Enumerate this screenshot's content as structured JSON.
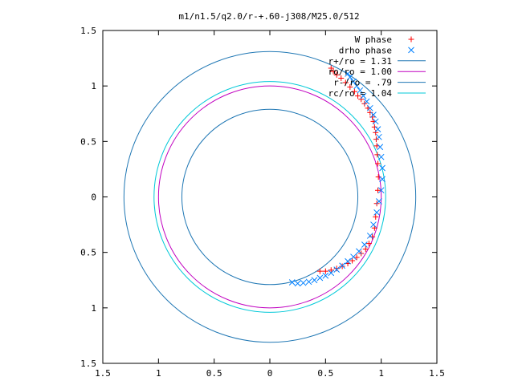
{
  "chart_data": {
    "type": "scatter",
    "title": "m1/n1.5/q2.0/r-+.60-j308/M25.0/512",
    "xlabel": "",
    "ylabel": "",
    "xlim": [
      -1.5,
      1.5
    ],
    "ylim": [
      -1.5,
      1.5
    ],
    "x_tick_values": [
      -1.5,
      -1,
      -0.5,
      0,
      0.5,
      1,
      1.5
    ],
    "x_tick_labels": [
      "1.5",
      "1",
      "0.5",
      "0",
      "0.5",
      "1",
      "1.5"
    ],
    "y_tick_values": [
      1.5,
      1,
      0.5,
      0,
      -0.5,
      -1,
      -1.5
    ],
    "y_tick_labels": [
      "1.5",
      "1",
      "0.5",
      "0",
      "0.5",
      "1",
      "1.5"
    ],
    "grid": false,
    "legend_position": "top-right",
    "circles": [
      {
        "name": "r+/ro = 1.31",
        "radius": 1.31,
        "color": "#1f77b4"
      },
      {
        "name": "ro/ro = 1.00",
        "radius": 1.0,
        "color": "#c000c0"
      },
      {
        "name": "r-/ro = .79",
        "radius": 0.79,
        "color": "#1f77b4"
      },
      {
        "name": "rc/ro = 1.04",
        "radius": 1.04,
        "color": "#00c8d8"
      }
    ],
    "series": [
      {
        "name": "W phase",
        "marker": "+",
        "color": "#ff0000",
        "x": [
          0.45,
          0.5,
          0.55,
          0.6,
          0.65,
          0.7,
          0.74,
          0.78,
          0.82,
          0.86,
          0.89,
          0.92,
          0.94,
          0.95,
          0.96,
          0.97,
          0.975,
          0.97,
          0.965,
          0.96,
          0.955,
          0.95,
          0.94,
          0.93,
          0.92,
          0.9,
          0.88,
          0.85,
          0.82,
          0.79,
          0.76,
          0.72,
          0.68,
          0.64,
          0.6,
          0.57,
          0.55
        ],
        "y": [
          -0.67,
          -0.67,
          -0.66,
          -0.645,
          -0.625,
          -0.6,
          -0.575,
          -0.545,
          -0.51,
          -0.47,
          -0.42,
          -0.36,
          -0.28,
          -0.18,
          -0.06,
          0.06,
          0.18,
          0.3,
          0.38,
          0.46,
          0.52,
          0.58,
          0.63,
          0.68,
          0.72,
          0.76,
          0.8,
          0.84,
          0.88,
          0.91,
          0.95,
          0.99,
          1.03,
          1.07,
          1.1,
          1.13,
          1.16
        ]
      },
      {
        "name": "drho phase",
        "marker": "x",
        "color": "#0080ff",
        "x": [
          0.2,
          0.25,
          0.3,
          0.35,
          0.4,
          0.45,
          0.5,
          0.55,
          0.6,
          0.65,
          0.7,
          0.75,
          0.8,
          0.85,
          0.9,
          0.93,
          0.96,
          0.98,
          1.0,
          1.01,
          1.01,
          1.0,
          0.99,
          0.98,
          0.97,
          0.95,
          0.93,
          0.9,
          0.87,
          0.84,
          0.81,
          0.78,
          0.75,
          0.72,
          0.7
        ],
        "y": [
          -0.77,
          -0.78,
          -0.775,
          -0.765,
          -0.75,
          -0.73,
          -0.71,
          -0.685,
          -0.655,
          -0.62,
          -0.58,
          -0.54,
          -0.49,
          -0.43,
          -0.35,
          -0.25,
          -0.14,
          -0.04,
          0.06,
          0.16,
          0.26,
          0.36,
          0.45,
          0.54,
          0.61,
          0.68,
          0.74,
          0.8,
          0.86,
          0.91,
          0.96,
          1.0,
          1.04,
          1.08,
          1.11
        ]
      }
    ]
  }
}
